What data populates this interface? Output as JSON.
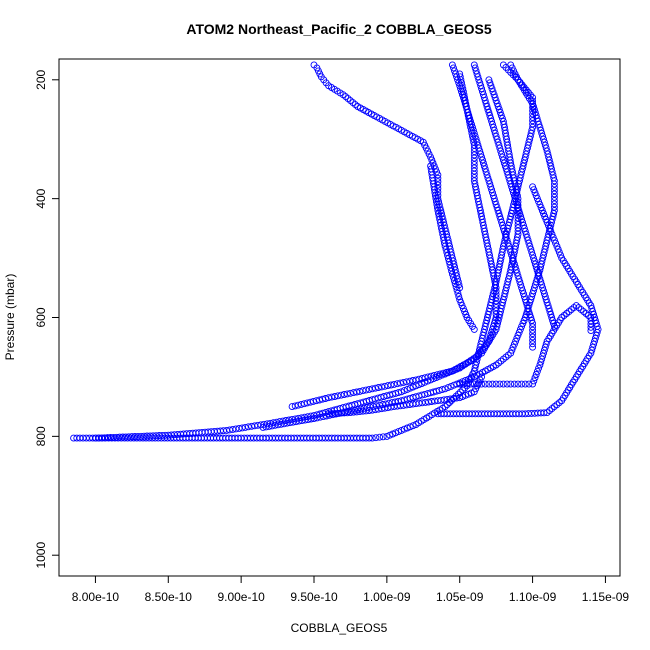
{
  "chart_data": {
    "type": "scatter",
    "title": "ATOM2 Northeast_Pacific_2 COBBLA_GEOS5",
    "xlabel": "COBBLA_GEOS5",
    "ylabel": "Pressure (mbar)",
    "xlim": [
      7.75e-10,
      1.16e-09
    ],
    "ylim": [
      1035,
      165
    ],
    "y_reversed": true,
    "x_ticks": [
      8e-10,
      8.5e-10,
      9e-10,
      9.5e-10,
      1e-09,
      1.05e-09,
      1.1e-09,
      1.15e-09
    ],
    "x_tick_labels": [
      "8.00e-10",
      "8.50e-10",
      "9.00e-10",
      "9.50e-10",
      "1.00e-09",
      "1.05e-09",
      "1.10e-09",
      "1.15e-09"
    ],
    "y_ticks": [
      200,
      400,
      600,
      800,
      1000
    ],
    "y_tick_labels": [
      "200",
      "400",
      "600",
      "800",
      "1000"
    ],
    "marker": "open-circle",
    "color": "#0000ff",
    "grid": false,
    "series": [
      {
        "x": [
          7.85e-10,
          8.2e-10,
          8.6e-10,
          9e-10,
          9.3e-10,
          9.6e-10,
          9.9e-10,
          1e-09,
          1.02e-09,
          1.04e-09,
          1.055e-09,
          1.06e-09,
          1.065e-09,
          1.07e-09,
          1.075e-09,
          1.08e-09,
          1.085e-09,
          1.09e-09,
          1.095e-09,
          1.1e-09,
          1.1e-09,
          1.09e-09,
          1.085e-09
        ],
        "y": [
          803,
          803,
          803,
          803,
          803,
          803,
          803,
          800,
          780,
          750,
          715,
          690,
          640,
          590,
          540,
          480,
          430,
          380,
          330,
          280,
          230,
          200,
          175
        ]
      },
      {
        "x": [
          8e-10,
          8.5e-10,
          8.9e-10,
          9.2e-10,
          9.5e-10,
          9.8e-10,
          1.01e-09,
          1.03e-09,
          1.05e-09,
          1.065e-09,
          1.075e-09,
          1.08e-09,
          1.085e-09,
          1.09e-09,
          1.09e-09,
          1.085e-09,
          1.08e-09,
          1.07e-09
        ],
        "y": [
          803,
          798,
          790,
          778,
          765,
          745,
          725,
          705,
          685,
          660,
          620,
          570,
          520,
          460,
          400,
          340,
          270,
          200
        ]
      },
      {
        "x": [
          9.35e-10,
          9.6e-10,
          9.9e-10,
          1.02e-09,
          1.045e-09,
          1.06e-09,
          1.07e-09,
          1.075e-09,
          1.075e-09,
          1.07e-09,
          1.065e-09,
          1.06e-09,
          1.06e-09,
          1.055e-09,
          1.05e-09
        ],
        "y": [
          750,
          735,
          720,
          705,
          690,
          670,
          640,
          600,
          550,
          490,
          430,
          370,
          310,
          250,
          190
        ]
      },
      {
        "x": [
          9.15e-10,
          9.5e-10,
          9.8e-10,
          1.01e-09,
          1.04e-09,
          1.06e-09,
          1.075e-09,
          1.085e-09,
          1.09e-09,
          1.095e-09,
          1.1e-09,
          1.105e-09,
          1.11e-09,
          1.115e-09,
          1.115e-09,
          1.11e-09,
          1.105e-09,
          1.1e-09,
          1.09e-09,
          1.08e-09
        ],
        "y": [
          785,
          770,
          755,
          740,
          720,
          700,
          680,
          660,
          630,
          600,
          560,
          520,
          470,
          420,
          370,
          320,
          280,
          240,
          200,
          175
        ]
      },
      {
        "x": [
          1.035e-09,
          1.05e-09,
          1.065e-09,
          1.08e-09,
          1.095e-09,
          1.11e-09,
          1.12e-09,
          1.13e-09,
          1.14e-09,
          1.145e-09,
          1.14e-09,
          1.13e-09,
          1.12e-09,
          1.11e-09,
          1.1e-09
        ],
        "y": [
          762,
          762,
          762,
          762,
          762,
          760,
          740,
          700,
          660,
          620,
          580,
          540,
          500,
          440,
          380
        ]
      },
      {
        "x": [
          9.5e-10,
          9.52e-10,
          9.55e-10,
          9.6e-10,
          9.7e-10,
          9.8e-10,
          9.95e-10,
          1.01e-09,
          1.025e-09,
          1.03e-09,
          1.035e-09,
          1.035e-09,
          1.04e-09,
          1.045e-09,
          1.05e-09
        ],
        "y": [
          175,
          180,
          195,
          210,
          225,
          245,
          265,
          285,
          305,
          330,
          360,
          400,
          450,
          500,
          550
        ]
      },
      {
        "x": [
          1.05e-09,
          1.06e-09,
          1.07e-09,
          1.08e-09,
          1.09e-09,
          1.1e-09,
          1.105e-09,
          1.11e-09,
          1.12e-09,
          1.13e-09,
          1.14e-09,
          1.14e-09
        ],
        "y": [
          712,
          712,
          712,
          712,
          712,
          712,
          680,
          640,
          600,
          580,
          600,
          622
        ]
      },
      {
        "x": [
          1.045e-09,
          1.05e-09,
          1.055e-09,
          1.06e-09,
          1.065e-09,
          1.07e-09,
          1.075e-09,
          1.08e-09,
          1.085e-09,
          1.09e-09,
          1.095e-09,
          1.1e-09,
          1.1e-09
        ],
        "y": [
          175,
          210,
          250,
          290,
          330,
          370,
          410,
          450,
          490,
          530,
          570,
          610,
          650
        ]
      },
      {
        "x": [
          1.06e-09,
          1.065e-09,
          1.07e-09,
          1.075e-09,
          1.08e-09,
          1.085e-09,
          1.09e-09,
          1.095e-09,
          1.1e-09,
          1.105e-09,
          1.11e-09,
          1.115e-09
        ],
        "y": [
          175,
          215,
          255,
          295,
          335,
          375,
          415,
          455,
          495,
          535,
          575,
          615
        ]
      },
      {
        "x": [
          9.6e-10,
          9.75e-10,
          9.9e-10,
          1.005e-09,
          1.02e-09,
          1.035e-09,
          1.05e-09,
          1.06e-09,
          1.065e-09
        ],
        "y": [
          762,
          760,
          756,
          750,
          745,
          740,
          735,
          725,
          700
        ]
      },
      {
        "x": [
          1.03e-09,
          1.035e-09,
          1.04e-09,
          1.045e-09,
          1.05e-09,
          1.055e-09,
          1.06e-09
        ],
        "y": [
          345,
          420,
          480,
          527,
          570,
          600,
          620
        ]
      }
    ]
  }
}
